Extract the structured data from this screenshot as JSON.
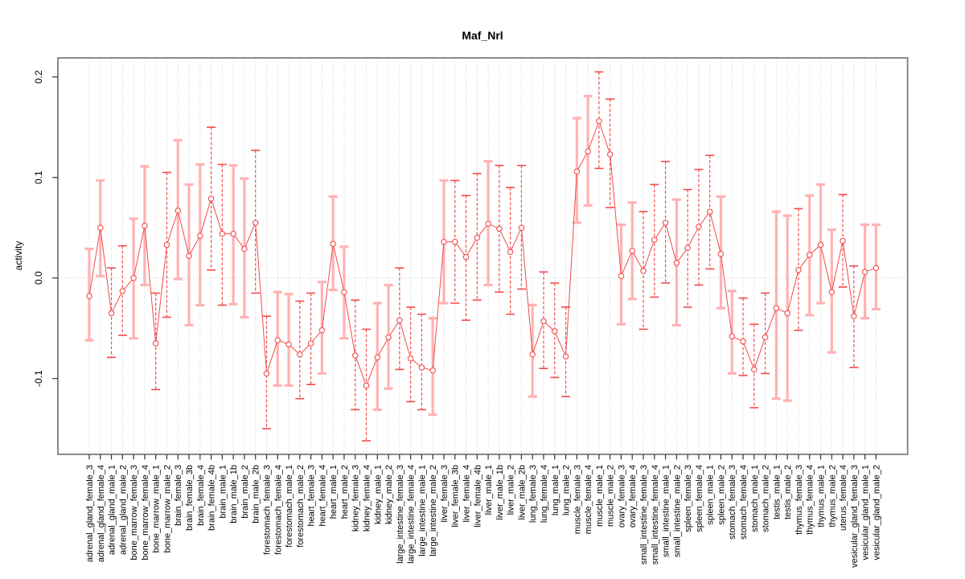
{
  "chart_data": {
    "type": "line",
    "title": "Maf_Nrl",
    "xlabel": "",
    "ylabel": "activity",
    "ylim": [
      -0.175,
      0.219
    ],
    "yticks": [
      -0.1,
      0.0,
      0.1,
      0.2
    ],
    "ytick_labels": [
      "-0.1",
      "0.0",
      "0.1",
      "0.2"
    ],
    "grid": "vertical-dotted-per-category-plus-zero-line",
    "legend": "none",
    "marker": "open-circle",
    "categories": [
      "adrenal_gland_female_3",
      "adrenal_gland_female_4",
      "adrenal_gland_male_1",
      "adrenal_gland_male_2",
      "bone_marrow_female_3",
      "bone_marrow_female_4",
      "bone_marrow_male_1",
      "bone_marrow_male_2",
      "brain_female_3",
      "brain_female_3b",
      "brain_female_4",
      "brain_female_4b",
      "brain_male_1",
      "brain_male_1b",
      "brain_male_2",
      "brain_male_2b",
      "forestomach_female_3",
      "forestomach_female_4",
      "forestomach_male_1",
      "forestomach_male_2",
      "heart_female_3",
      "heart_female_4",
      "heart_male_1",
      "heart_male_2",
      "kidney_female_3",
      "kidney_female_4",
      "kidney_male_1",
      "kidney_male_2",
      "large_intestine_female_3",
      "large_intestine_female_4",
      "large_intestine_male_1",
      "large_intestine_male_2",
      "liver_female_3",
      "liver_female_3b",
      "liver_female_4",
      "liver_female_4b",
      "liver_male_1",
      "liver_male_1b",
      "liver_male_2",
      "liver_male_2b",
      "lung_female_3",
      "lung_female_4",
      "lung_male_1",
      "lung_male_2",
      "muscle_female_3",
      "muscle_female_4",
      "muscle_male_1",
      "muscle_male_2",
      "ovary_female_3",
      "ovary_female_4",
      "small_intestine_female_3",
      "small_intestine_female_4",
      "small_intestine_male_1",
      "small_intestine_male_2",
      "spleen_female_3",
      "spleen_female_4",
      "spleen_male_1",
      "spleen_male_2",
      "stomach_female_3",
      "stomach_female_4",
      "stomach_male_1",
      "stomach_male_2",
      "testis_male_1",
      "testis_male_2",
      "thymus_female_3",
      "thymus_female_4",
      "thymus_male_1",
      "thymus_male_2",
      "uterus_female_4",
      "vesicular_gland_female_3",
      "vesicular_gland_male_1",
      "vesicular_gland_male_2"
    ],
    "series": [
      {
        "name": "activity",
        "values": [
          -0.018,
          0.05,
          -0.035,
          -0.013,
          0.0,
          0.052,
          -0.065,
          0.033,
          0.067,
          0.022,
          0.042,
          0.079,
          0.044,
          0.044,
          0.029,
          0.055,
          -0.095,
          -0.062,
          -0.066,
          -0.076,
          -0.065,
          -0.052,
          0.034,
          -0.014,
          -0.077,
          -0.107,
          -0.079,
          -0.059,
          -0.042,
          -0.08,
          -0.089,
          -0.092,
          0.036,
          0.036,
          0.021,
          0.04,
          0.054,
          0.049,
          0.026,
          0.05,
          -0.076,
          -0.043,
          -0.053,
          -0.078,
          0.106,
          0.126,
          0.156,
          0.123,
          0.002,
          0.027,
          0.007,
          0.038,
          0.055,
          0.015,
          0.03,
          0.051,
          0.066,
          0.024,
          -0.058,
          -0.063,
          -0.091,
          -0.059,
          -0.03,
          -0.035,
          0.008,
          0.023,
          0.033,
          -0.014,
          0.037,
          -0.038,
          0.006,
          0.01
        ],
        "err_low": [
          -0.062,
          0.002,
          -0.079,
          -0.057,
          -0.06,
          -0.007,
          -0.111,
          -0.039,
          -0.001,
          -0.047,
          -0.027,
          0.008,
          -0.027,
          -0.026,
          -0.039,
          -0.015,
          -0.15,
          -0.107,
          -0.107,
          -0.12,
          -0.106,
          -0.095,
          -0.012,
          -0.06,
          -0.131,
          -0.162,
          -0.131,
          -0.11,
          -0.091,
          -0.123,
          -0.131,
          -0.136,
          -0.025,
          -0.025,
          -0.042,
          -0.022,
          -0.007,
          -0.014,
          -0.036,
          -0.011,
          -0.118,
          -0.09,
          -0.099,
          -0.118,
          0.055,
          0.072,
          0.109,
          0.07,
          -0.046,
          -0.021,
          -0.051,
          -0.019,
          -0.005,
          -0.047,
          -0.029,
          -0.007,
          0.009,
          -0.03,
          -0.095,
          -0.097,
          -0.129,
          -0.095,
          -0.12,
          -0.122,
          -0.052,
          -0.037,
          -0.025,
          -0.074,
          -0.009,
          -0.089,
          -0.04,
          -0.031
        ],
        "err_high": [
          0.029,
          0.097,
          0.01,
          0.032,
          0.059,
          0.111,
          -0.015,
          0.105,
          0.137,
          0.093,
          0.113,
          0.15,
          0.113,
          0.112,
          0.099,
          0.127,
          -0.038,
          -0.014,
          -0.016,
          -0.023,
          -0.015,
          -0.004,
          0.081,
          0.031,
          -0.022,
          -0.051,
          -0.025,
          -0.007,
          0.01,
          -0.029,
          -0.036,
          -0.04,
          0.097,
          0.097,
          0.082,
          0.104,
          0.116,
          0.112,
          0.09,
          0.112,
          -0.027,
          0.006,
          -0.005,
          -0.029,
          0.159,
          0.181,
          0.205,
          0.178,
          0.053,
          0.075,
          0.066,
          0.093,
          0.116,
          0.078,
          0.088,
          0.108,
          0.122,
          0.081,
          -0.013,
          -0.02,
          -0.046,
          -0.015,
          0.066,
          0.062,
          0.069,
          0.082,
          0.093,
          0.048,
          0.083,
          0.012,
          0.053,
          0.053
        ],
        "bar_style": [
          "solid",
          "solid",
          "dashed",
          "dashed",
          "solid",
          "solid",
          "dashed",
          "dashed",
          "solid",
          "solid",
          "solid",
          "dashed",
          "dashed",
          "solid",
          "solid",
          "dashed",
          "dashed",
          "solid",
          "solid",
          "dashed",
          "dashed",
          "solid",
          "solid",
          "solid",
          "dashed",
          "dashed",
          "solid",
          "solid",
          "dashed",
          "dashed",
          "dashed",
          "solid",
          "solid",
          "dashed",
          "dashed",
          "dashed",
          "solid",
          "dashed",
          "dashed",
          "dashed",
          "solid",
          "dashed",
          "dashed",
          "dashed",
          "solid",
          "solid",
          "dashed",
          "dashed",
          "solid",
          "solid",
          "dashed",
          "dashed",
          "dashed",
          "solid",
          "dashed",
          "dashed",
          "dashed",
          "solid",
          "solid",
          "dashed",
          "dashed",
          "dashed",
          "solid",
          "solid",
          "dashed",
          "solid",
          "solid",
          "solid",
          "dashed",
          "dashed",
          "solid",
          "solid"
        ]
      }
    ],
    "colors": {
      "point_line": "#f24b4b",
      "pale_bar": "#ffb2b2",
      "grid": "#d8d8d8",
      "box_border": "#7e7e7e",
      "tick": "#333333",
      "background": "#ffffff"
    }
  }
}
